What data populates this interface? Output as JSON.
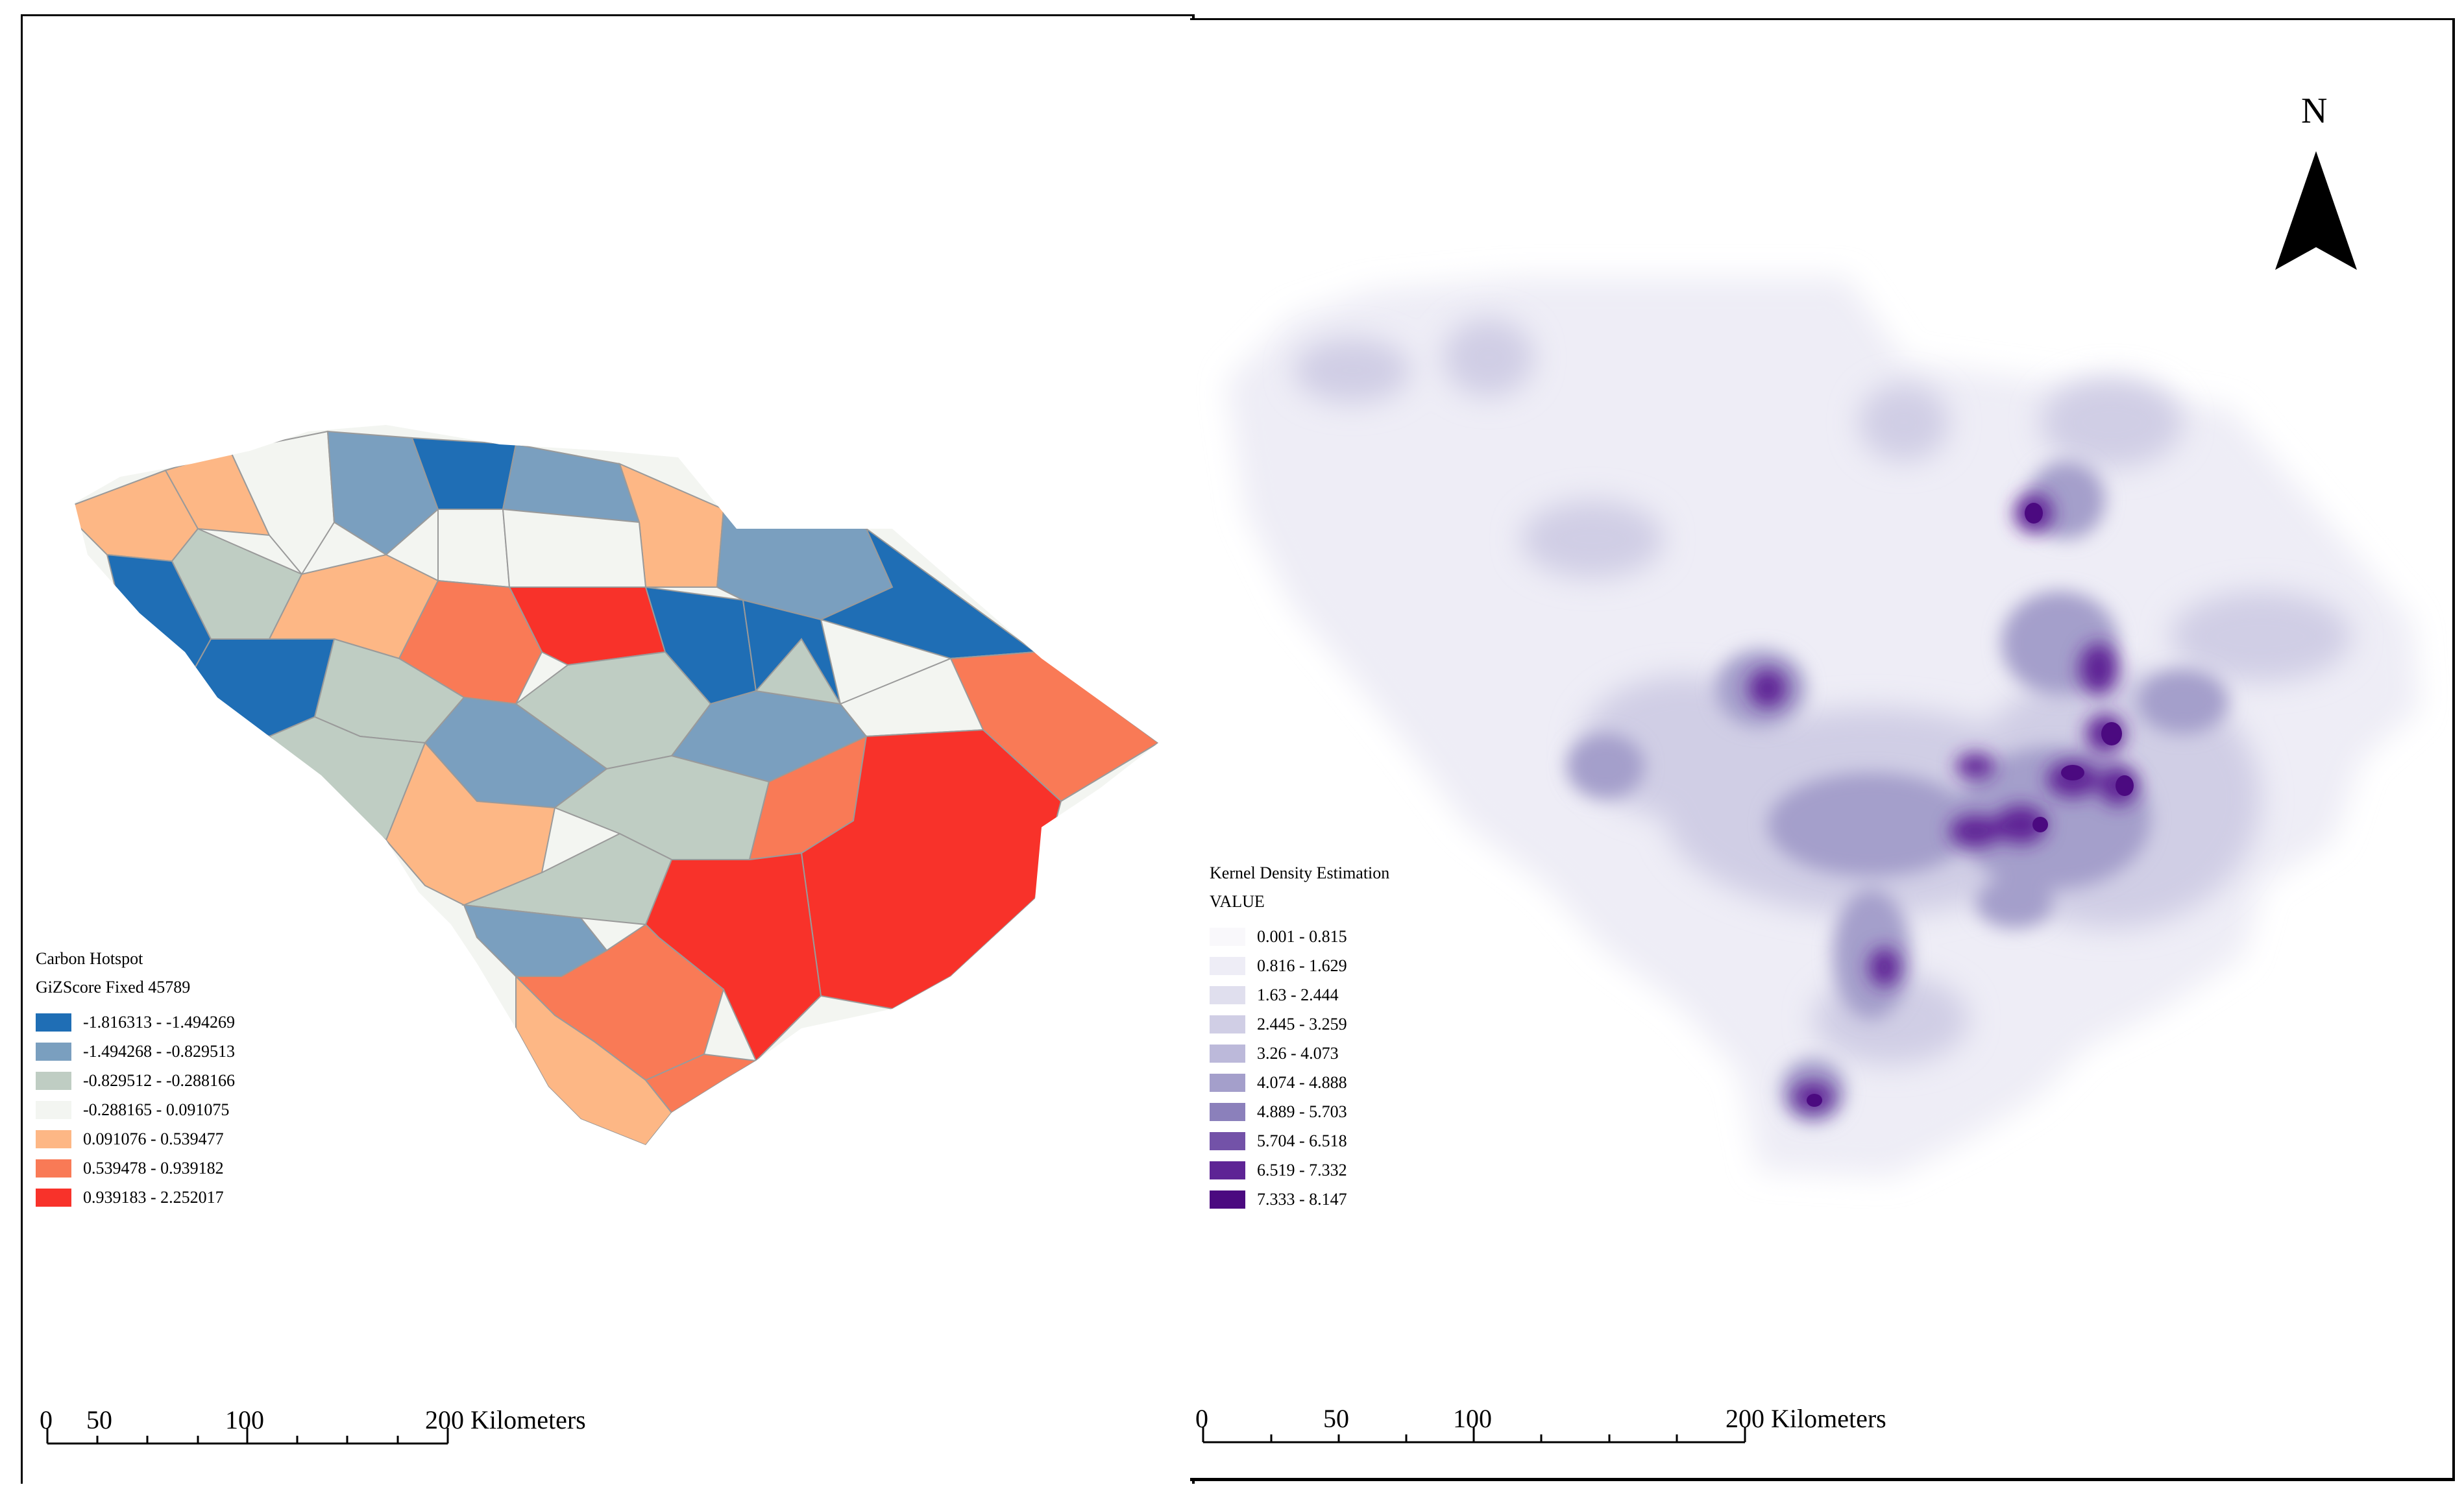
{
  "left_map": {
    "legend": {
      "title": "Carbon Hotspot",
      "subtitle": "GiZScore Fixed 45789",
      "classes": [
        {
          "label": "-1.816313 - -1.494269",
          "color": "#1f6eb5"
        },
        {
          "label": "-1.494268 - -0.829513",
          "color": "#7a9fbf"
        },
        {
          "label": "-0.829512 - -0.288166",
          "color": "#bfcdc3"
        },
        {
          "label": "-0.288165 - 0.091075",
          "color": "#f3f5f1"
        },
        {
          "label": "0.091076 - 0.539477",
          "color": "#fdb785"
        },
        {
          "label": "0.539478 - 0.939182",
          "color": "#f97a56"
        },
        {
          "label": "0.939183 - 2.252017",
          "color": "#f8322a"
        }
      ]
    },
    "scale_bar": {
      "ticks": [
        "0",
        "50",
        "100",
        "200 Kilometers"
      ]
    }
  },
  "right_map": {
    "legend": {
      "title": "Kernel Density Estimation",
      "subtitle": "VALUE",
      "classes": [
        {
          "label": "0.001 - 0.815",
          "color": "#f9f8fb"
        },
        {
          "label": "0.816 - 1.629",
          "color": "#eeedf6"
        },
        {
          "label": "1.63 - 2.444",
          "color": "#e0dfee"
        },
        {
          "label": "2.445 - 3.259",
          "color": "#d0cee5"
        },
        {
          "label": "3.26 - 4.073",
          "color": "#bcb9da"
        },
        {
          "label": "4.074 - 4.888",
          "color": "#a49fcb"
        },
        {
          "label": "4.889 - 5.703",
          "color": "#8b80bb"
        },
        {
          "label": "5.704 - 6.518",
          "color": "#7352a8"
        },
        {
          "label": "6.519 - 7.332",
          "color": "#5e2495"
        },
        {
          "label": "7.333 - 8.147",
          "color": "#4b0a80"
        }
      ]
    },
    "north_arrow": {
      "label": "N"
    },
    "scale_bar": {
      "ticks": [
        "0",
        "50",
        "100",
        "200 Kilometers"
      ]
    }
  }
}
